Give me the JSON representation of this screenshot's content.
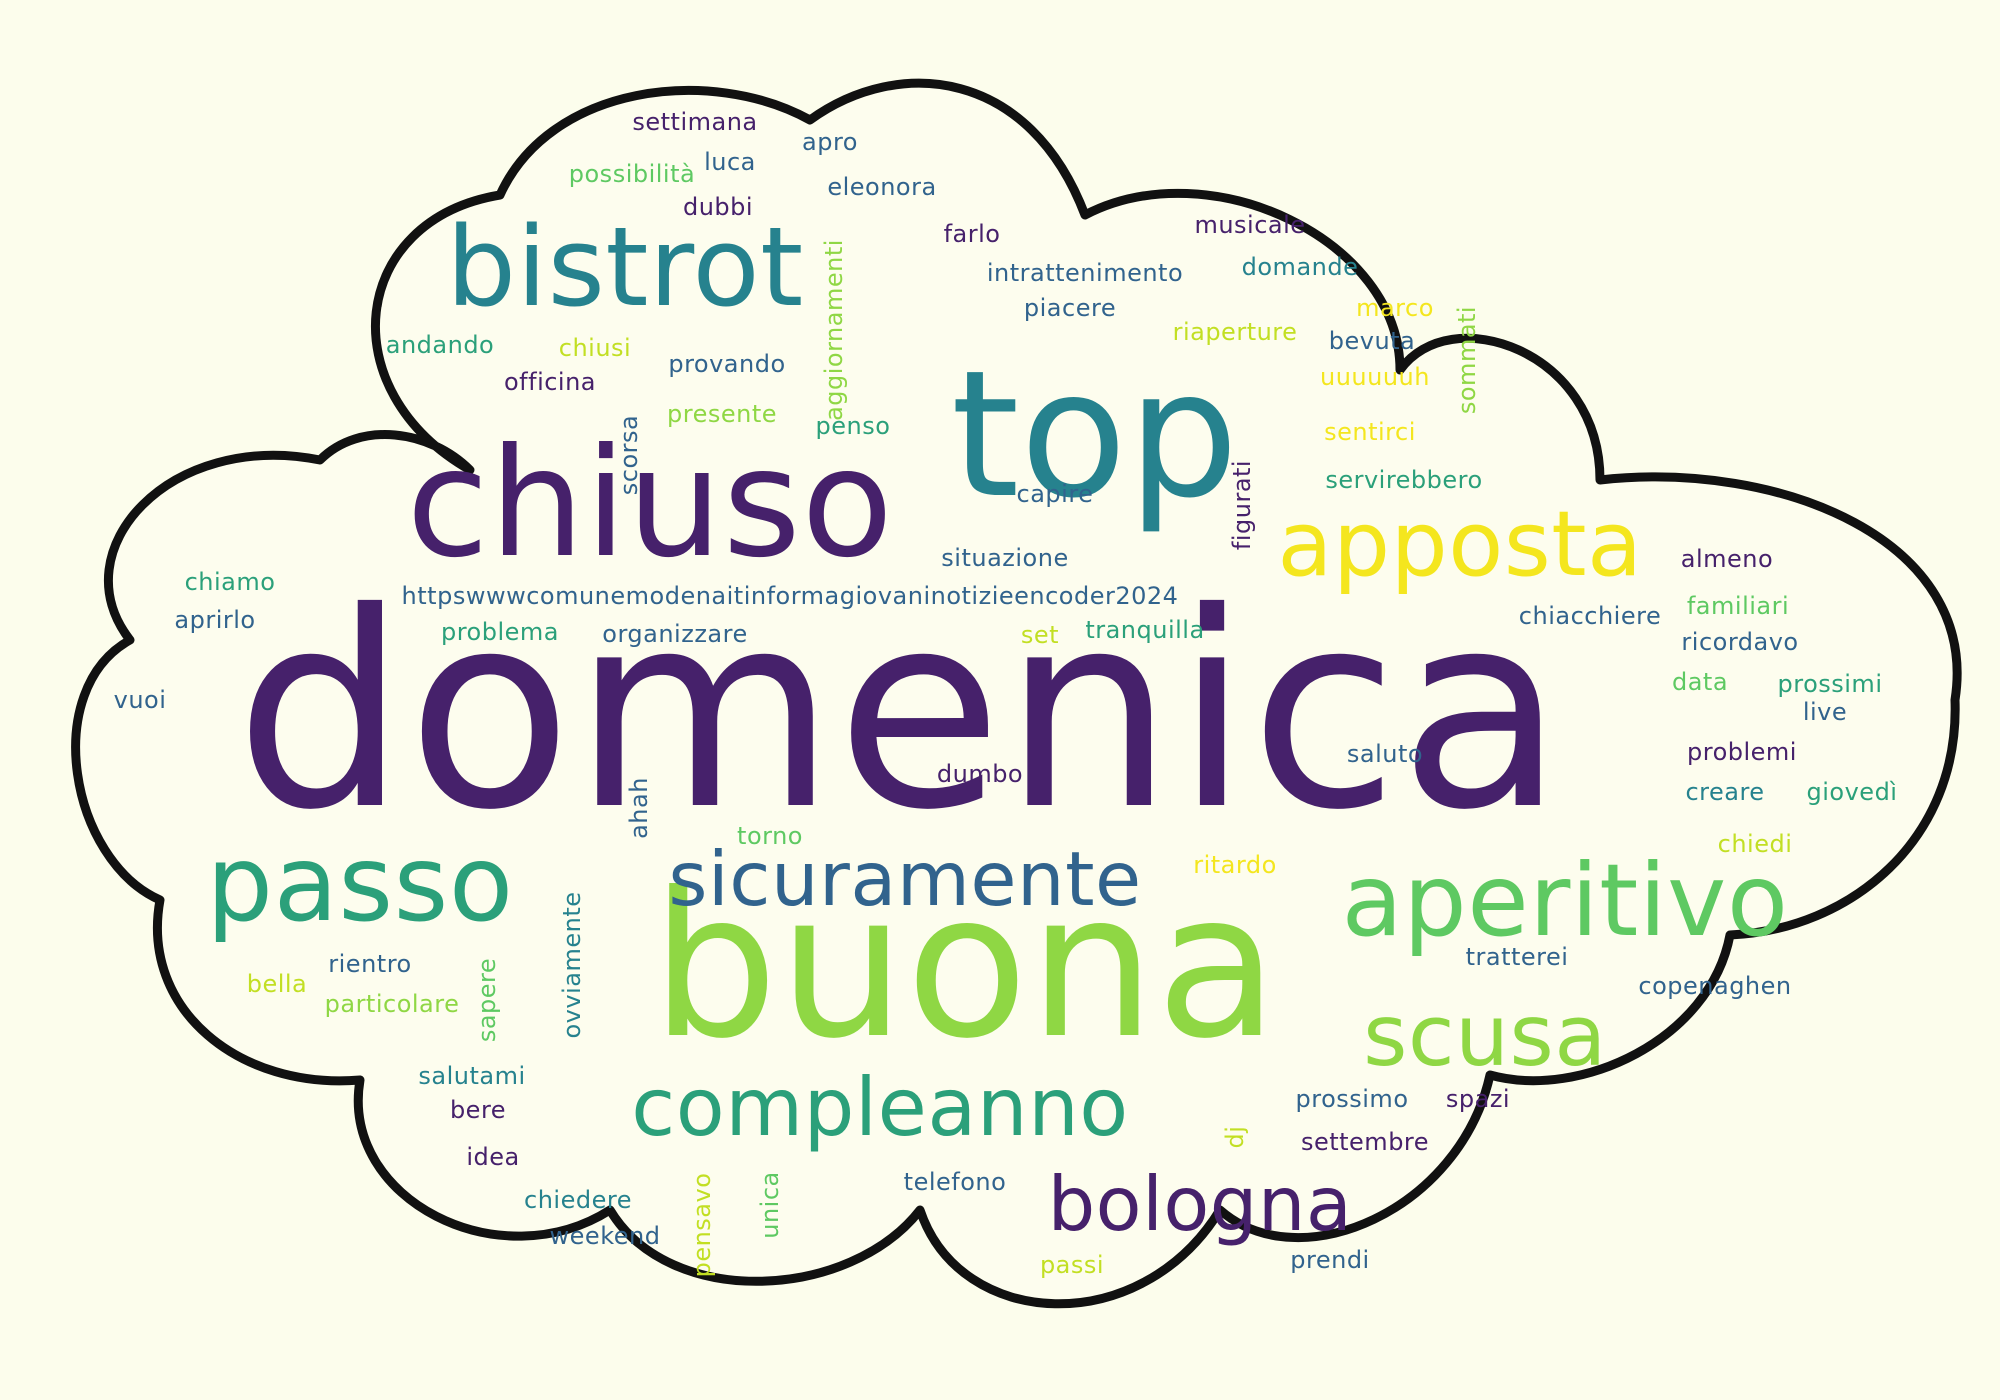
{
  "colors": {
    "background": "#fcfdec",
    "cloud_fill": "#fdfdee",
    "cloud_outline": "#111111",
    "palette": [
      "#46216b",
      "#31638d",
      "#26828e",
      "#2ba07a",
      "#5ec962",
      "#8fd744",
      "#c2df23",
      "#f4e61e"
    ]
  },
  "words": [
    {
      "text": "domenica",
      "color": "#46216b"
    },
    {
      "text": "buona",
      "color": "#8fd744"
    },
    {
      "text": "top",
      "color": "#26828e"
    },
    {
      "text": "chiuso",
      "color": "#46216b"
    },
    {
      "text": "bistrot",
      "color": "#26828e"
    },
    {
      "text": "passo",
      "color": "#2ba07a"
    },
    {
      "text": "aperitivo",
      "color": "#5ec962"
    },
    {
      "text": "apposta",
      "color": "#f4e61e"
    },
    {
      "text": "sicuramente",
      "color": "#31638d"
    },
    {
      "text": "scusa",
      "color": "#8fd744"
    },
    {
      "text": "compleanno",
      "color": "#2ba07a"
    },
    {
      "text": "bologna",
      "color": "#46216b"
    },
    {
      "text": "settimana",
      "color": "#46216b"
    },
    {
      "text": "apro",
      "color": "#31638d"
    },
    {
      "text": "possibilità",
      "color": "#5ec962"
    },
    {
      "text": "luca",
      "color": "#31638d"
    },
    {
      "text": "eleonora",
      "color": "#31638d"
    },
    {
      "text": "dubbi",
      "color": "#46216b"
    },
    {
      "text": "aggiornamenti",
      "color": "#8fd744"
    },
    {
      "text": "farlo",
      "color": "#46216b"
    },
    {
      "text": "musicale",
      "color": "#46216b"
    },
    {
      "text": "intrattenimento",
      "color": "#31638d"
    },
    {
      "text": "domande",
      "color": "#26828e"
    },
    {
      "text": "piacere",
      "color": "#31638d"
    },
    {
      "text": "marco",
      "color": "#f4e61e"
    },
    {
      "text": "sommati",
      "color": "#8fd744"
    },
    {
      "text": "riaperture",
      "color": "#c2df23"
    },
    {
      "text": "bevuta",
      "color": "#31638d"
    },
    {
      "text": "andando",
      "color": "#2ba07a"
    },
    {
      "text": "chiusi",
      "color": "#c2df23"
    },
    {
      "text": "provando",
      "color": "#31638d"
    },
    {
      "text": "uuuuuuh",
      "color": "#f4e61e"
    },
    {
      "text": "officina",
      "color": "#46216b"
    },
    {
      "text": "presente",
      "color": "#8fd744"
    },
    {
      "text": "penso",
      "color": "#2ba07a"
    },
    {
      "text": "scorsa",
      "color": "#31638d"
    },
    {
      "text": "sentirci",
      "color": "#f4e61e"
    },
    {
      "text": "servirebbero",
      "color": "#2ba07a"
    },
    {
      "text": "capire",
      "color": "#31638d"
    },
    {
      "text": "figurati",
      "color": "#46216b"
    },
    {
      "text": "situazione",
      "color": "#31638d"
    },
    {
      "text": "almeno",
      "color": "#46216b"
    },
    {
      "text": "chiamo",
      "color": "#2ba07a"
    },
    {
      "text": "httpswwwcomunemodenaitinformagiovaninotizieencoder2024",
      "color": "#31638d"
    },
    {
      "text": "familiari",
      "color": "#5ec962"
    },
    {
      "text": "aprirlo",
      "color": "#31638d"
    },
    {
      "text": "problema",
      "color": "#2ba07a"
    },
    {
      "text": "organizzare",
      "color": "#31638d"
    },
    {
      "text": "set",
      "color": "#c2df23"
    },
    {
      "text": "tranquilla",
      "color": "#2ba07a"
    },
    {
      "text": "chiacchiere",
      "color": "#31638d"
    },
    {
      "text": "ricordavo",
      "color": "#31638d"
    },
    {
      "text": "data",
      "color": "#5ec962"
    },
    {
      "text": "prossimi",
      "color": "#2ba07a"
    },
    {
      "text": "vuoi",
      "color": "#31638d"
    },
    {
      "text": "live",
      "color": "#31638d"
    },
    {
      "text": "saluto",
      "color": "#31638d"
    },
    {
      "text": "problemi",
      "color": "#46216b"
    },
    {
      "text": "ahah",
      "color": "#31638d"
    },
    {
      "text": "dumbo",
      "color": "#46216b"
    },
    {
      "text": "creare",
      "color": "#26828e"
    },
    {
      "text": "giovedì",
      "color": "#2ba07a"
    },
    {
      "text": "torno",
      "color": "#5ec962"
    },
    {
      "text": "ritardo",
      "color": "#f4e61e"
    },
    {
      "text": "chiedi",
      "color": "#c2df23"
    },
    {
      "text": "rientro",
      "color": "#31638d"
    },
    {
      "text": "ovviamente",
      "color": "#26828e"
    },
    {
      "text": "tratterei",
      "color": "#31638d"
    },
    {
      "text": "bella",
      "color": "#c2df23"
    },
    {
      "text": "sapere",
      "color": "#5ec962"
    },
    {
      "text": "particolare",
      "color": "#8fd744"
    },
    {
      "text": "copenaghen",
      "color": "#31638d"
    },
    {
      "text": "salutami",
      "color": "#26828e"
    },
    {
      "text": "bere",
      "color": "#46216b"
    },
    {
      "text": "prossimo",
      "color": "#31638d"
    },
    {
      "text": "spazi",
      "color": "#46216b"
    },
    {
      "text": "dj",
      "color": "#c2df23"
    },
    {
      "text": "settembre",
      "color": "#46216b"
    },
    {
      "text": "idea",
      "color": "#46216b"
    },
    {
      "text": "pensavo",
      "color": "#c2df23"
    },
    {
      "text": "unica",
      "color": "#5ec962"
    },
    {
      "text": "telefono",
      "color": "#31638d"
    },
    {
      "text": "chiedere",
      "color": "#26828e"
    },
    {
      "text": "weekend",
      "color": "#31638d"
    },
    {
      "text": "passi",
      "color": "#c2df23"
    },
    {
      "text": "prendi",
      "color": "#31638d"
    }
  ]
}
